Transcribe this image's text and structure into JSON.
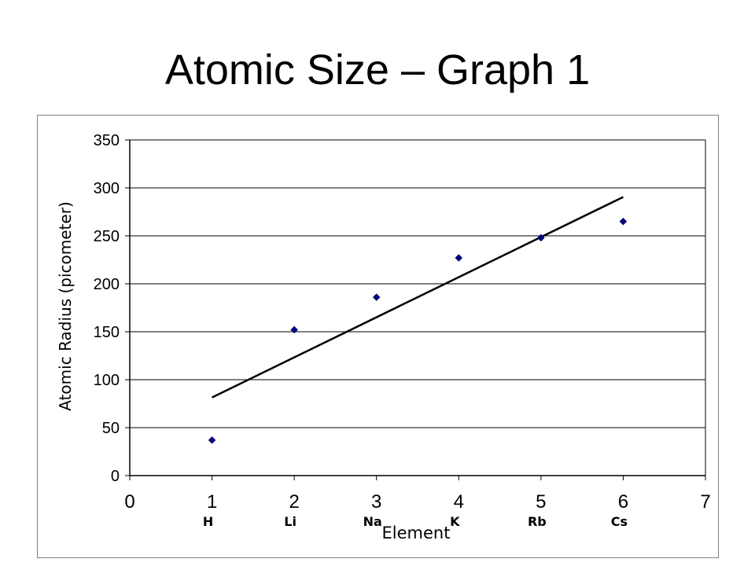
{
  "slide": {
    "title": "Atomic Size – Graph 1"
  },
  "chart_data": {
    "type": "scatter",
    "xlabel": "Element",
    "ylabel": "Atomic Radius (picometer)",
    "xlim": [
      0,
      7
    ],
    "ylim": [
      0,
      350
    ],
    "x_ticks": [
      "0",
      "1",
      "2",
      "3",
      "4",
      "5",
      "6",
      "7"
    ],
    "y_ticks": [
      "0",
      "50",
      "100",
      "150",
      "200",
      "250",
      "300",
      "350"
    ],
    "grid": "horizontal",
    "legend": "none",
    "element_labels": [
      {
        "x": 1,
        "label": "H"
      },
      {
        "x": 2,
        "label": "Li"
      },
      {
        "x": 3,
        "label": "Na"
      },
      {
        "x": 4,
        "label": "K"
      },
      {
        "x": 5,
        "label": "Rb"
      },
      {
        "x": 6,
        "label": "Cs"
      }
    ],
    "series": [
      {
        "x": [
          1,
          2,
          3,
          4,
          5,
          6
        ],
        "values": [
          37,
          152,
          186,
          227,
          248,
          265
        ],
        "color": "#000080",
        "marker": "diamond"
      }
    ],
    "trendline": {
      "x": [
        1,
        6
      ],
      "y": [
        81.5,
        290.5
      ],
      "color": "#000000"
    }
  }
}
